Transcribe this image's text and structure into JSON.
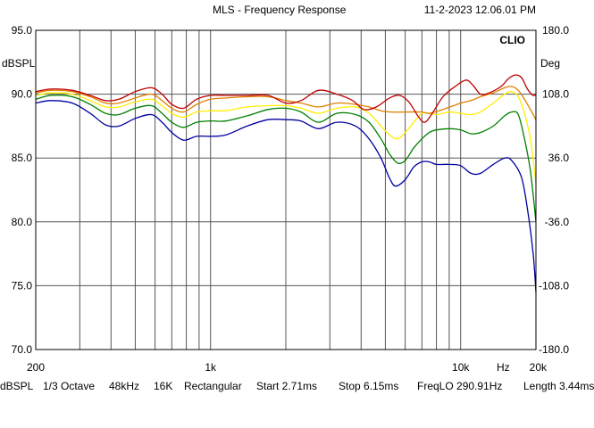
{
  "header": {
    "title": "MLS - Frequency Response",
    "timestamp": "11-2-2023 12.06.01 PM"
  },
  "chart_data": {
    "type": "line",
    "brand": "CLIO",
    "x_scale": "log",
    "xlim": [
      200,
      20000
    ],
    "ylim": [
      70,
      95
    ],
    "y2lim": [
      -180,
      180
    ],
    "grid": true,
    "left_unit": "dBSPL",
    "right_unit": "Deg",
    "x_unit": "Hz",
    "y_ticks": [
      "95.0",
      "90.0",
      "85.0",
      "80.0",
      "75.0",
      "70.0"
    ],
    "y2_ticks": [
      "180.0",
      "108.0",
      "36.0",
      "-36.0",
      "-108.0",
      "-180.0"
    ],
    "x_tick_labels": [
      {
        "value": 200,
        "label": "200"
      },
      {
        "value": 1000,
        "label": "1k"
      },
      {
        "value": 10000,
        "label": "10k"
      },
      {
        "value": 20000,
        "label": "20k"
      }
    ],
    "series": [
      {
        "color": "#0000a0",
        "points": [
          [
            200,
            89.3
          ],
          [
            230,
            89.5
          ],
          [
            280,
            89.3
          ],
          [
            330,
            88.5
          ],
          [
            380,
            87.6
          ],
          [
            430,
            87.5
          ],
          [
            500,
            88.1
          ],
          [
            580,
            88.4
          ],
          [
            640,
            87.8
          ],
          [
            700,
            87.0
          ],
          [
            780,
            86.4
          ],
          [
            880,
            86.7
          ],
          [
            1000,
            86.7
          ],
          [
            1150,
            86.8
          ],
          [
            1400,
            87.5
          ],
          [
            1700,
            88.0
          ],
          [
            2000,
            88.0
          ],
          [
            2300,
            87.9
          ],
          [
            2700,
            87.3
          ],
          [
            3200,
            87.8
          ],
          [
            3800,
            87.5
          ],
          [
            4300,
            86.5
          ],
          [
            4800,
            85.0
          ],
          [
            5200,
            83.4
          ],
          [
            5500,
            82.8
          ],
          [
            6000,
            83.3
          ],
          [
            6500,
            84.3
          ],
          [
            7000,
            84.7
          ],
          [
            7500,
            84.7
          ],
          [
            8000,
            84.5
          ],
          [
            9000,
            84.5
          ],
          [
            10000,
            84.4
          ],
          [
            11000,
            83.8
          ],
          [
            12000,
            83.8
          ],
          [
            13500,
            84.5
          ],
          [
            15000,
            85.0
          ],
          [
            16000,
            84.8
          ],
          [
            17500,
            83.5
          ],
          [
            18500,
            81.0
          ],
          [
            19500,
            77.5
          ],
          [
            20000,
            74.5
          ]
        ]
      },
      {
        "color": "#008000",
        "points": [
          [
            200,
            89.6
          ],
          [
            230,
            89.9
          ],
          [
            280,
            89.8
          ],
          [
            330,
            89.2
          ],
          [
            380,
            88.5
          ],
          [
            430,
            88.4
          ],
          [
            500,
            88.9
          ],
          [
            580,
            89.1
          ],
          [
            640,
            88.5
          ],
          [
            700,
            87.8
          ],
          [
            780,
            87.4
          ],
          [
            880,
            87.8
          ],
          [
            1000,
            87.9
          ],
          [
            1150,
            87.9
          ],
          [
            1400,
            88.3
          ],
          [
            1700,
            88.8
          ],
          [
            2000,
            88.9
          ],
          [
            2300,
            88.6
          ],
          [
            2700,
            87.8
          ],
          [
            3200,
            88.5
          ],
          [
            3800,
            88.4
          ],
          [
            4300,
            87.8
          ],
          [
            4800,
            86.5
          ],
          [
            5200,
            85.3
          ],
          [
            5600,
            84.6
          ],
          [
            6000,
            84.8
          ],
          [
            6500,
            85.8
          ],
          [
            7000,
            86.5
          ],
          [
            7500,
            87.0
          ],
          [
            8000,
            87.2
          ],
          [
            9000,
            87.3
          ],
          [
            10000,
            87.2
          ],
          [
            11000,
            86.9
          ],
          [
            12000,
            87.0
          ],
          [
            13500,
            87.5
          ],
          [
            15000,
            88.3
          ],
          [
            16000,
            88.6
          ],
          [
            17000,
            88.4
          ],
          [
            18000,
            86.5
          ],
          [
            19000,
            84.0
          ],
          [
            20000,
            80.0
          ]
        ]
      },
      {
        "color": "#ffee00",
        "points": [
          [
            200,
            89.9
          ],
          [
            230,
            90.1
          ],
          [
            280,
            90.0
          ],
          [
            330,
            89.5
          ],
          [
            380,
            89.0
          ],
          [
            430,
            89.0
          ],
          [
            500,
            89.4
          ],
          [
            580,
            89.6
          ],
          [
            640,
            89.1
          ],
          [
            700,
            88.5
          ],
          [
            780,
            88.2
          ],
          [
            880,
            88.6
          ],
          [
            1000,
            88.7
          ],
          [
            1150,
            88.7
          ],
          [
            1400,
            89.0
          ],
          [
            1700,
            89.1
          ],
          [
            2000,
            89.1
          ],
          [
            2300,
            88.9
          ],
          [
            2700,
            88.5
          ],
          [
            3200,
            88.9
          ],
          [
            3800,
            89.0
          ],
          [
            4300,
            88.5
          ],
          [
            4800,
            87.5
          ],
          [
            5200,
            86.8
          ],
          [
            5600,
            86.5
          ],
          [
            6000,
            87.0
          ],
          [
            6500,
            87.8
          ],
          [
            7000,
            88.5
          ],
          [
            7500,
            88.5
          ],
          [
            8000,
            88.4
          ],
          [
            9000,
            88.6
          ],
          [
            10000,
            88.5
          ],
          [
            11000,
            88.4
          ],
          [
            12000,
            88.6
          ],
          [
            13500,
            89.3
          ],
          [
            15000,
            90.0
          ],
          [
            16000,
            90.2
          ],
          [
            17000,
            89.8
          ],
          [
            18000,
            88.5
          ],
          [
            19000,
            86.5
          ],
          [
            20000,
            83.0
          ]
        ]
      },
      {
        "color": "#e08000",
        "points": [
          [
            200,
            90.1
          ],
          [
            230,
            90.3
          ],
          [
            280,
            90.2
          ],
          [
            330,
            89.8
          ],
          [
            380,
            89.3
          ],
          [
            430,
            89.3
          ],
          [
            500,
            89.7
          ],
          [
            580,
            90.0
          ],
          [
            640,
            89.5
          ],
          [
            700,
            88.9
          ],
          [
            780,
            88.6
          ],
          [
            880,
            89.2
          ],
          [
            1000,
            89.6
          ],
          [
            1150,
            89.7
          ],
          [
            1400,
            89.8
          ],
          [
            1700,
            89.8
          ],
          [
            2000,
            89.5
          ],
          [
            2300,
            89.3
          ],
          [
            2700,
            89.0
          ],
          [
            3200,
            89.3
          ],
          [
            3800,
            89.2
          ],
          [
            4300,
            89.0
          ],
          [
            4800,
            88.7
          ],
          [
            5300,
            88.6
          ],
          [
            6000,
            88.6
          ],
          [
            7000,
            88.6
          ],
          [
            7500,
            88.5
          ],
          [
            8500,
            88.8
          ],
          [
            10000,
            89.3
          ],
          [
            11000,
            89.5
          ],
          [
            12000,
            89.8
          ],
          [
            13500,
            90.1
          ],
          [
            15000,
            90.5
          ],
          [
            16000,
            90.6
          ],
          [
            17000,
            90.3
          ],
          [
            18000,
            89.6
          ],
          [
            19000,
            88.8
          ],
          [
            20000,
            88.0
          ]
        ]
      },
      {
        "color": "#c00000",
        "points": [
          [
            200,
            90.2
          ],
          [
            230,
            90.4
          ],
          [
            280,
            90.3
          ],
          [
            330,
            89.9
          ],
          [
            380,
            89.5
          ],
          [
            430,
            89.6
          ],
          [
            500,
            90.2
          ],
          [
            580,
            90.5
          ],
          [
            640,
            90.0
          ],
          [
            700,
            89.2
          ],
          [
            780,
            88.9
          ],
          [
            880,
            89.6
          ],
          [
            1000,
            89.9
          ],
          [
            1150,
            89.9
          ],
          [
            1400,
            89.9
          ],
          [
            1700,
            89.9
          ],
          [
            2000,
            89.3
          ],
          [
            2300,
            89.5
          ],
          [
            2700,
            90.3
          ],
          [
            3200,
            90.0
          ],
          [
            3700,
            89.5
          ],
          [
            4100,
            88.8
          ],
          [
            4600,
            89.0
          ],
          [
            5200,
            89.7
          ],
          [
            5700,
            89.9
          ],
          [
            6200,
            89.4
          ],
          [
            6800,
            88.2
          ],
          [
            7200,
            87.8
          ],
          [
            7700,
            88.5
          ],
          [
            8500,
            89.8
          ],
          [
            9500,
            90.6
          ],
          [
            10500,
            91.1
          ],
          [
            11200,
            90.7
          ],
          [
            12000,
            90.0
          ],
          [
            13000,
            90.1
          ],
          [
            14500,
            90.6
          ],
          [
            15500,
            91.2
          ],
          [
            16500,
            91.5
          ],
          [
            17500,
            91.3
          ],
          [
            18500,
            90.4
          ],
          [
            19500,
            89.9
          ],
          [
            20000,
            90.0
          ]
        ]
      }
    ]
  },
  "footer": {
    "unit": "dBSPL",
    "smoothing": "1/3 Octave",
    "sample_rate": "48kHz",
    "size": "16K",
    "window": "Rectangular",
    "start": "Start 2.71ms",
    "stop": "Stop 6.15ms",
    "freqlo": "FreqLO 290.91Hz",
    "length": "Length 3.44ms"
  }
}
